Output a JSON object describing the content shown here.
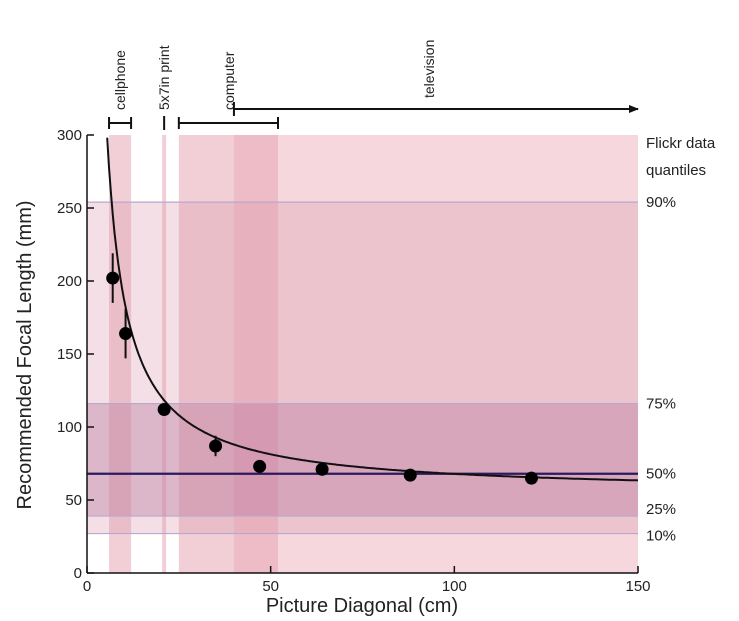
{
  "chart_data": {
    "type": "scatter",
    "xlabel": "Picture Diagonal (cm)",
    "ylabel": "Recommended Focal Length (mm)",
    "xlim": [
      0,
      150
    ],
    "ylim": [
      0,
      300
    ],
    "xticks": [
      "0",
      "50",
      "100",
      "150"
    ],
    "yticks": [
      "0",
      "50",
      "100",
      "150",
      "200",
      "250",
      "300"
    ],
    "points": [
      {
        "x": 7,
        "y": 202,
        "err": 17
      },
      {
        "x": 10.5,
        "y": 164,
        "err": 17
      },
      {
        "x": 21,
        "y": 112,
        "err": 3
      },
      {
        "x": 35,
        "y": 87,
        "err": 7
      },
      {
        "x": 47,
        "y": 73,
        "err": 3
      },
      {
        "x": 64,
        "y": 71,
        "err": 2
      },
      {
        "x": 88,
        "y": 67,
        "err": 2
      },
      {
        "x": 121,
        "y": 65,
        "err": 2
      }
    ],
    "fit_curve": {
      "a": 1340,
      "b": 54.5
    },
    "quantiles": {
      "title": "Flickr data quantiles",
      "items": [
        {
          "label": "90%",
          "y": 254
        },
        {
          "label": "75%",
          "y": 116
        },
        {
          "label": "50%",
          "y": 68
        },
        {
          "label": "25%",
          "y": 39
        },
        {
          "label": "10%",
          "y": 27
        }
      ]
    },
    "devices": [
      {
        "label": "cellphone",
        "x0": 6,
        "x1": 12
      },
      {
        "label": "5x7in print",
        "x0": 21,
        "x1": 21
      },
      {
        "label": "computer",
        "x0": 25,
        "x1": 52
      },
      {
        "label": "television",
        "x0": 40,
        "x1": 150
      }
    ]
  }
}
